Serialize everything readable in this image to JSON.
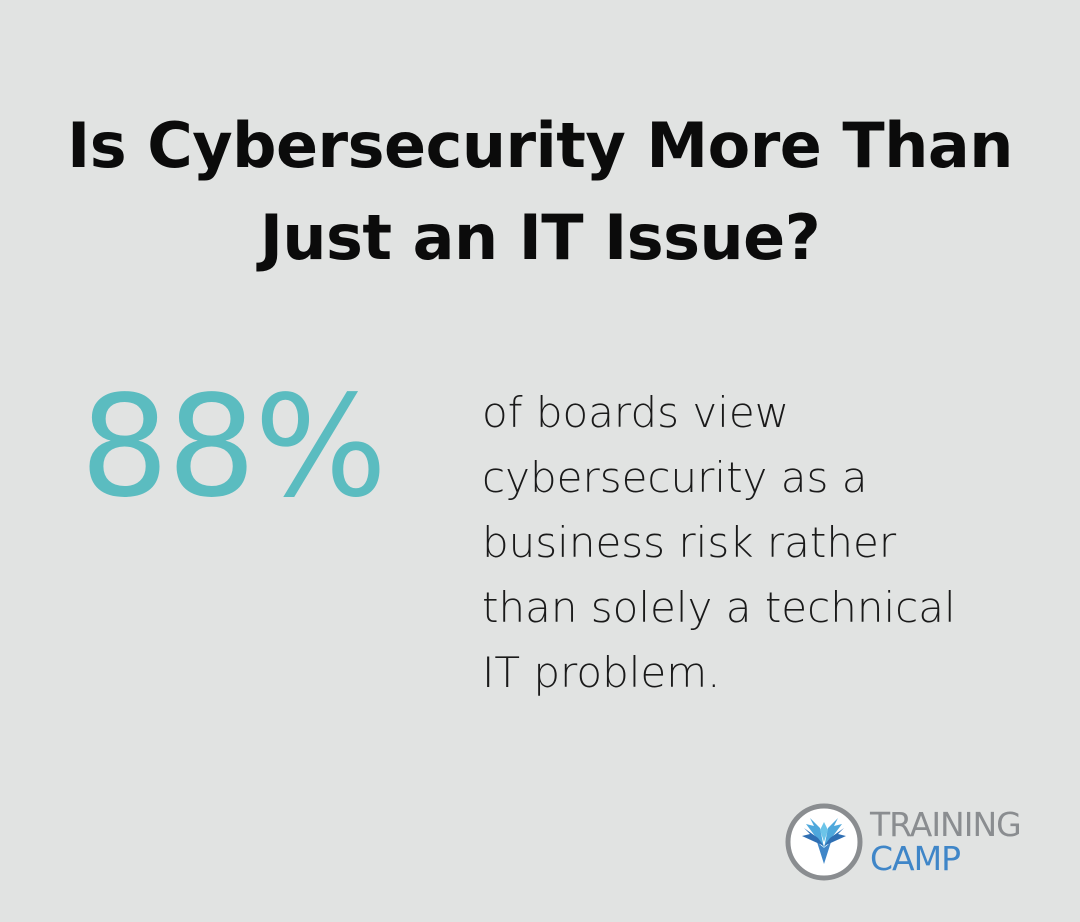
{
  "title": {
    "line1": "Is Cybersecurity More Than",
    "line2": "Just an IT Issue?"
  },
  "stat": {
    "value": "88%",
    "description_lines": [
      "of boards view",
      "cybersecurity as a",
      "business risk rather",
      "than solely a technical",
      "IT problem."
    ]
  },
  "logo": {
    "line1": "TRAINING",
    "line2": "CAMP",
    "icon": "phoenix-emblem-icon"
  },
  "colors": {
    "background": "#e1e3e2",
    "accent": "#5bbcc0",
    "logo_gray": "#8a8d90",
    "logo_blue": "#3f86c8"
  }
}
